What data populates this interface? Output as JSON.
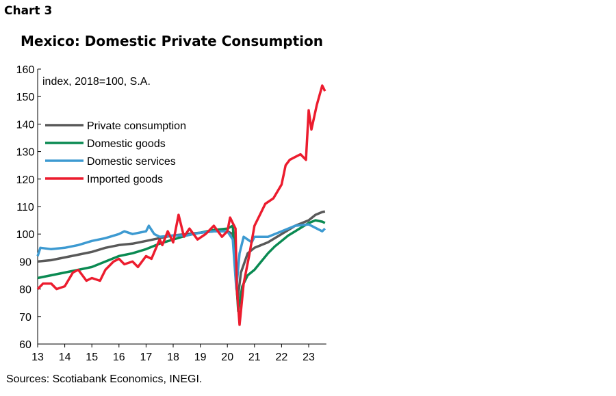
{
  "header": {
    "chart_label": "Chart 3",
    "title": "Mexico: Domestic Private Consumption",
    "source": "Sources: Scotiabank Economics, INEGI."
  },
  "chart_data": {
    "type": "line",
    "title": "Mexico: Domestic Private Consumption",
    "annotation": "index, 2018=100, S.A.",
    "xlabel": "",
    "ylabel": "",
    "xlim": [
      13,
      23.65
    ],
    "ylim": [
      60,
      160
    ],
    "xticks": [
      "13",
      "14",
      "15",
      "16",
      "17",
      "18",
      "19",
      "20",
      "21",
      "22",
      "23"
    ],
    "yticks": [
      "60",
      "70",
      "80",
      "90",
      "100",
      "110",
      "120",
      "130",
      "140",
      "150",
      "160"
    ],
    "grid": false,
    "legend": "top-left",
    "series": [
      {
        "name": "Private consumption",
        "color": "#595959",
        "points": [
          [
            13,
            90
          ],
          [
            13.5,
            90.5
          ],
          [
            14,
            91.5
          ],
          [
            14.5,
            92.5
          ],
          [
            15,
            93.5
          ],
          [
            15.5,
            95
          ],
          [
            16,
            96
          ],
          [
            16.5,
            96.5
          ],
          [
            17,
            97.5
          ],
          [
            17.5,
            98.5
          ],
          [
            18,
            99.5
          ],
          [
            18.5,
            100
          ],
          [
            19,
            100.5
          ],
          [
            19.5,
            101
          ],
          [
            20,
            101
          ],
          [
            20.2,
            100
          ],
          [
            20.3,
            85
          ],
          [
            20.38,
            76
          ],
          [
            20.5,
            86
          ],
          [
            20.75,
            93
          ],
          [
            21,
            95
          ],
          [
            21.25,
            96
          ],
          [
            21.5,
            97
          ],
          [
            21.75,
            98.5
          ],
          [
            22,
            100
          ],
          [
            22.25,
            101.5
          ],
          [
            22.5,
            103
          ],
          [
            22.75,
            104
          ],
          [
            23,
            105
          ],
          [
            23.25,
            107
          ],
          [
            23.5,
            108
          ],
          [
            23.6,
            108.2
          ]
        ]
      },
      {
        "name": "Domestic goods",
        "color": "#0a8a52",
        "points": [
          [
            13,
            84
          ],
          [
            13.5,
            85
          ],
          [
            14,
            86
          ],
          [
            14.5,
            87
          ],
          [
            15,
            88
          ],
          [
            15.5,
            90
          ],
          [
            16,
            92
          ],
          [
            16.5,
            93
          ],
          [
            17,
            94.5
          ],
          [
            17.5,
            96.5
          ],
          [
            18,
            98
          ],
          [
            18.5,
            99.5
          ],
          [
            19,
            100.5
          ],
          [
            19.5,
            101.5
          ],
          [
            20,
            102
          ],
          [
            20.2,
            103
          ],
          [
            20.3,
            88
          ],
          [
            20.4,
            72
          ],
          [
            20.55,
            81
          ],
          [
            20.75,
            85
          ],
          [
            21,
            87
          ],
          [
            21.25,
            90
          ],
          [
            21.5,
            93
          ],
          [
            21.75,
            95.5
          ],
          [
            22,
            97.5
          ],
          [
            22.25,
            99.5
          ],
          [
            22.5,
            101
          ],
          [
            22.75,
            102.5
          ],
          [
            23,
            104
          ],
          [
            23.25,
            105
          ],
          [
            23.5,
            104.5
          ],
          [
            23.6,
            104
          ]
        ]
      },
      {
        "name": "Domestic services",
        "color": "#3d9ad1",
        "points": [
          [
            13,
            92
          ],
          [
            13.1,
            95
          ],
          [
            13.5,
            94.5
          ],
          [
            14,
            95
          ],
          [
            14.5,
            96
          ],
          [
            15,
            97.5
          ],
          [
            15.5,
            98.5
          ],
          [
            16,
            100
          ],
          [
            16.2,
            101
          ],
          [
            16.5,
            100
          ],
          [
            17,
            101
          ],
          [
            17.1,
            103
          ],
          [
            17.3,
            100
          ],
          [
            17.5,
            99
          ],
          [
            18,
            99.5
          ],
          [
            18.5,
            99.5
          ],
          [
            19,
            100.5
          ],
          [
            19.5,
            101
          ],
          [
            20,
            101
          ],
          [
            20.2,
            98
          ],
          [
            20.33,
            80
          ],
          [
            20.45,
            93
          ],
          [
            20.6,
            99
          ],
          [
            20.9,
            97
          ],
          [
            21,
            99
          ],
          [
            21.5,
            99
          ],
          [
            22,
            101
          ],
          [
            22.5,
            103
          ],
          [
            23,
            103.5
          ],
          [
            23.3,
            102
          ],
          [
            23.5,
            101
          ],
          [
            23.6,
            102
          ]
        ]
      },
      {
        "name": "Imported goods",
        "color": "#ec1c2e",
        "points": [
          [
            13,
            80
          ],
          [
            13.2,
            82
          ],
          [
            13.5,
            82
          ],
          [
            13.7,
            80
          ],
          [
            14,
            81
          ],
          [
            14.3,
            86
          ],
          [
            14.5,
            87
          ],
          [
            14.8,
            83
          ],
          [
            15,
            84
          ],
          [
            15.3,
            83
          ],
          [
            15.5,
            87
          ],
          [
            15.8,
            90
          ],
          [
            16,
            91
          ],
          [
            16.2,
            89
          ],
          [
            16.5,
            90
          ],
          [
            16.7,
            88
          ],
          [
            17,
            92
          ],
          [
            17.2,
            91
          ],
          [
            17.5,
            98
          ],
          [
            17.6,
            96
          ],
          [
            17.8,
            101
          ],
          [
            18,
            97
          ],
          [
            18.2,
            107
          ],
          [
            18.4,
            99
          ],
          [
            18.6,
            102
          ],
          [
            18.9,
            98
          ],
          [
            19.2,
            100
          ],
          [
            19.5,
            103
          ],
          [
            19.8,
            99
          ],
          [
            20,
            101
          ],
          [
            20.1,
            106
          ],
          [
            20.2,
            104
          ],
          [
            20.3,
            102
          ],
          [
            20.35,
            80
          ],
          [
            20.45,
            67
          ],
          [
            20.6,
            82
          ],
          [
            20.8,
            92
          ],
          [
            21,
            103
          ],
          [
            21.2,
            107
          ],
          [
            21.4,
            111
          ],
          [
            21.7,
            113
          ],
          [
            22,
            118
          ],
          [
            22.15,
            125
          ],
          [
            22.3,
            127
          ],
          [
            22.5,
            128
          ],
          [
            22.7,
            129
          ],
          [
            22.9,
            127
          ],
          [
            23,
            145
          ],
          [
            23.1,
            138
          ],
          [
            23.3,
            147
          ],
          [
            23.5,
            154
          ],
          [
            23.6,
            152
          ]
        ]
      }
    ]
  }
}
